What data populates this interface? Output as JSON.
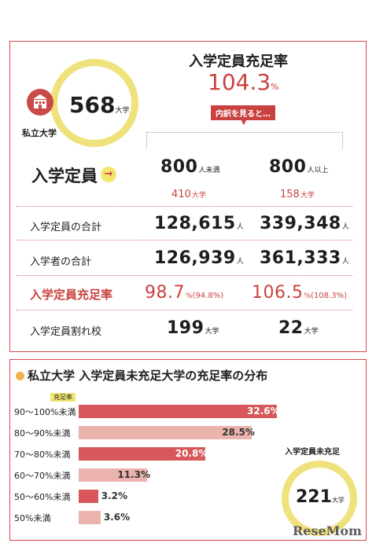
{
  "colors": {
    "accent_red": "#c9423f",
    "ring_yellow": "#efe27c",
    "bar_dark": "#d7575a",
    "bar_light": "#eab4ad"
  },
  "summary": {
    "icon": "school-building-icon",
    "private_univ_label": "私立大学",
    "count": "568",
    "count_unit": "大学",
    "fill_rate_title": "入学定員充足率",
    "fill_rate_value": "104.3",
    "fill_rate_unit": "%",
    "breakdown_tag": "内訳を見ると…",
    "capacity_heading": "入学定員"
  },
  "columns": [
    {
      "cap": "800",
      "cap_unit": "人未満",
      "schools": "410",
      "schools_unit": "大学"
    },
    {
      "cap": "800",
      "cap_unit": "人以上",
      "schools": "158",
      "schools_unit": "大学"
    }
  ],
  "rows": [
    {
      "label": "入学定員の合計",
      "v1": "128,615",
      "u1": "人",
      "v2": "339,348",
      "u2": "人"
    },
    {
      "label": "入学者の合計",
      "v1": "126,939",
      "u1": "人",
      "v2": "361,333",
      "u2": "人"
    },
    {
      "label": "入学定員充足率",
      "v1": "98.7",
      "u1": "%",
      "p1": "(94.8%)",
      "v2": "106.5",
      "u2": "%",
      "p2": "(108.3%)"
    },
    {
      "label": "入学定員割れ校",
      "v1": "199",
      "u1": "大学",
      "v2": "22",
      "u2": "大学"
    }
  ],
  "chart_data": {
    "type": "bar",
    "title": "私立大学 入学定員未充足大学の充足率の分布",
    "legend_tag": "充足率",
    "categories": [
      "90～100%未満",
      "80～90%未満",
      "70～80%未満",
      "60～70%未満",
      "50～60%未満",
      "50%未満"
    ],
    "values": [
      32.6,
      28.5,
      20.8,
      11.3,
      3.2,
      3.6
    ],
    "value_labels": [
      "32.6%",
      "28.5%",
      "20.8%",
      "11.3%",
      "3.2%",
      "3.6%"
    ],
    "xlim": [
      0,
      35
    ]
  },
  "shortfall": {
    "label": "入学定員未充足",
    "count": "221",
    "unit": "大学"
  },
  "watermark": "ReseMom"
}
